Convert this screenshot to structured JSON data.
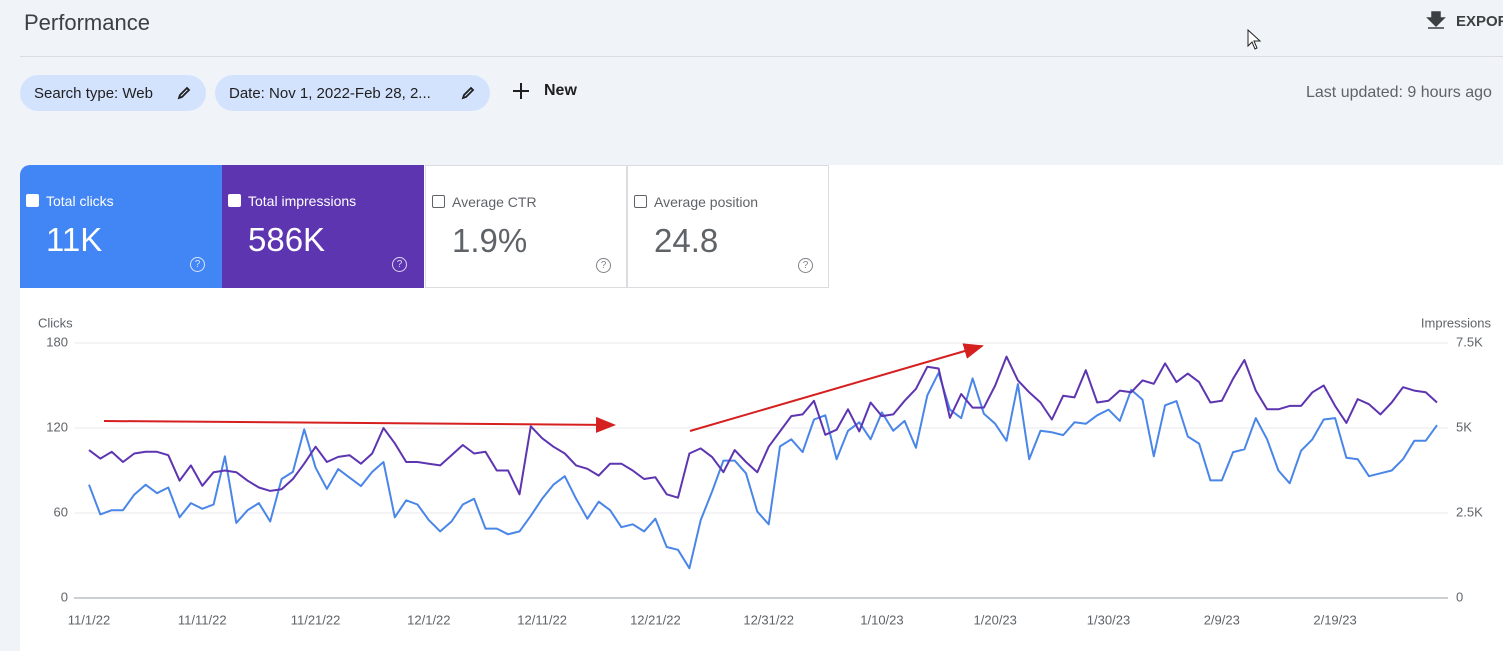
{
  "header": {
    "title": "Performance",
    "export": "EXPORT"
  },
  "filters": [
    "Search type: Web",
    "Date: Nov 1, 2022-Feb 28, 2..."
  ],
  "new_button": "New",
  "last_updated": "Last updated: 9 hours ago",
  "metrics": [
    {
      "label": "Total clicks",
      "value": "11K"
    },
    {
      "label": "Total impressions",
      "value": "586K"
    },
    {
      "label": "Average CTR",
      "value": "1.9%"
    },
    {
      "label": "Average position",
      "value": "24.8"
    }
  ],
  "chart_data": {
    "type": "line",
    "y_label": "Clicks",
    "y2_label": "Impressions",
    "categories": [
      "11/1/22",
      null,
      null,
      null,
      null,
      null,
      null,
      null,
      null,
      null,
      "11/11/22",
      null,
      null,
      null,
      null,
      null,
      null,
      null,
      null,
      null,
      "11/21/22",
      null,
      null,
      null,
      null,
      null,
      null,
      null,
      null,
      null,
      "12/1/22",
      null,
      null,
      null,
      null,
      null,
      null,
      null,
      null,
      null,
      "12/11/22",
      null,
      null,
      null,
      null,
      null,
      null,
      null,
      null,
      null,
      "12/21/22",
      null,
      null,
      null,
      null,
      null,
      null,
      null,
      null,
      null,
      "12/31/22",
      null,
      null,
      null,
      null,
      null,
      null,
      null,
      null,
      null,
      "1/10/23",
      null,
      null,
      null,
      null,
      null,
      null,
      null,
      null,
      null,
      "1/20/23",
      null,
      null,
      null,
      null,
      null,
      null,
      null,
      null,
      null,
      "1/30/23",
      null,
      null,
      null,
      null,
      null,
      null,
      null,
      null,
      null,
      "2/9/23",
      null,
      null,
      null,
      null,
      null,
      null,
      null,
      null,
      null,
      "2/19/23",
      null,
      null,
      null,
      null,
      null,
      null,
      null,
      null,
      null
    ],
    "ylim": [
      0,
      180
    ],
    "yticks": [
      0,
      60,
      120,
      180
    ],
    "y2lim": [
      0,
      7500
    ],
    "y2ticks": [
      0,
      {
        "value": 2500,
        "label": "2.5K"
      },
      {
        "value": 5000,
        "label": "5K"
      },
      {
        "value": 7500,
        "label": "7.5K"
      }
    ],
    "grid": true,
    "series": [
      {
        "name": "Clicks",
        "color": "#4a86e8",
        "values": [
          80,
          59,
          62,
          62,
          73,
          80,
          74,
          78,
          57,
          67,
          63,
          66,
          100,
          53,
          62,
          67,
          54,
          84,
          89,
          119,
          92,
          77,
          91,
          85,
          79,
          89,
          96,
          57,
          69,
          66,
          55,
          47,
          54,
          66,
          70,
          49,
          49,
          45,
          47,
          58,
          70,
          80,
          86,
          70,
          56,
          68,
          62,
          50,
          52,
          47,
          56,
          36,
          34,
          21,
          55,
          75,
          97,
          97,
          88,
          61,
          52,
          107,
          112,
          103,
          126,
          129,
          98,
          118,
          124,
          112,
          131,
          118,
          125,
          106,
          143,
          159,
          133,
          127,
          155,
          130,
          123,
          111,
          151,
          98,
          118,
          117,
          115,
          124,
          123,
          129,
          133,
          125,
          147,
          140,
          100,
          136,
          139,
          114,
          109,
          83,
          83,
          103,
          105,
          127,
          112,
          90,
          81,
          104,
          112,
          126,
          127,
          99,
          98,
          86,
          88,
          90,
          98,
          111,
          111,
          122
        ]
      },
      {
        "name": "Impressions",
        "color": "#5e35b1",
        "axis": "y2",
        "values": [
          4350,
          4100,
          4300,
          4000,
          4250,
          4300,
          4300,
          4200,
          3450,
          3900,
          3300,
          3700,
          3750,
          3700,
          3450,
          3250,
          3150,
          3200,
          3500,
          3950,
          4450,
          4000,
          4150,
          4200,
          3950,
          4250,
          5000,
          4550,
          4000,
          4000,
          3950,
          3900,
          4200,
          4500,
          4250,
          4300,
          3750,
          3750,
          3050,
          5050,
          4700,
          4450,
          4250,
          3900,
          3800,
          3600,
          3950,
          3950,
          3750,
          3500,
          3550,
          3050,
          2950,
          4250,
          4400,
          4150,
          3700,
          4350,
          4000,
          3700,
          4450,
          4900,
          5350,
          5400,
          5800,
          4800,
          4950,
          5550,
          4900,
          5750,
          5350,
          5400,
          5800,
          6150,
          6800,
          6750,
          5300,
          6000,
          5600,
          5600,
          6250,
          7100,
          6400,
          6050,
          5750,
          5250,
          5950,
          5900,
          6700,
          5750,
          5800,
          6100,
          6050,
          6400,
          6300,
          6900,
          6350,
          6600,
          6350,
          5750,
          5800,
          6450,
          7000,
          6100,
          5550,
          5550,
          5650,
          5650,
          6050,
          6250,
          5650,
          5150,
          5850,
          5700,
          5400,
          5750,
          6200,
          6100,
          6050,
          5750
        ]
      }
    ]
  }
}
